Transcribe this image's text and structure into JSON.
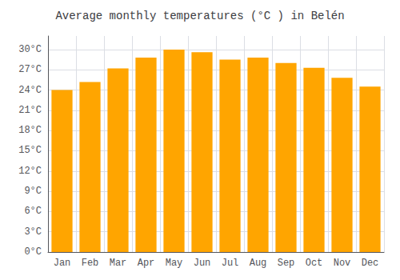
{
  "chart_data": {
    "type": "bar",
    "title": "Average monthly temperatures (°C ) in Belén",
    "categories": [
      "Jan",
      "Feb",
      "Mar",
      "Apr",
      "May",
      "Jun",
      "Jul",
      "Aug",
      "Sep",
      "Oct",
      "Nov",
      "Dec"
    ],
    "values": [
      24.0,
      25.2,
      27.2,
      28.8,
      30.0,
      29.6,
      28.5,
      28.8,
      28.0,
      27.3,
      25.8,
      24.5
    ],
    "color": "#FFA500",
    "ylim": [
      0,
      32
    ],
    "yticks": [
      {
        "value": 0,
        "label": "0°C"
      },
      {
        "value": 3,
        "label": "3°C"
      },
      {
        "value": 6,
        "label": "6°C"
      },
      {
        "value": 9,
        "label": "9°C"
      },
      {
        "value": 12,
        "label": "12°C"
      },
      {
        "value": 15,
        "label": "15°C"
      },
      {
        "value": 18,
        "label": "18°C"
      },
      {
        "value": 21,
        "label": "21°C"
      },
      {
        "value": 24,
        "label": "24°C"
      },
      {
        "value": 27,
        "label": "27°C"
      },
      {
        "value": 30,
        "label": "30°C"
      }
    ],
    "grid": true
  }
}
